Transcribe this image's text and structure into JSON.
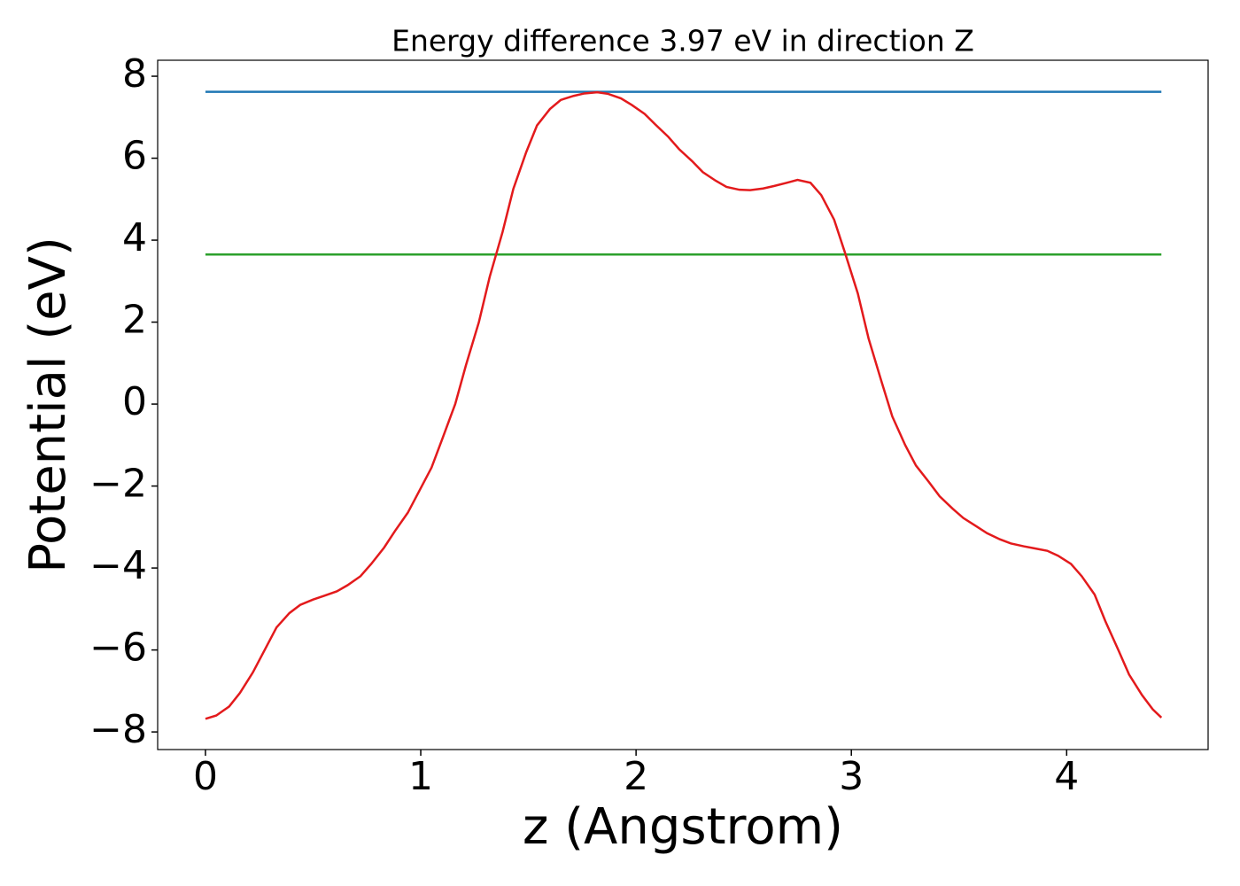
{
  "chart_data": {
    "type": "line",
    "title": "Energy difference 3.97 eV in direction Z",
    "xlabel": "z (Angstrom)",
    "ylabel": "Potential (eV)",
    "xlim": [
      -0.222,
      4.657
    ],
    "ylim": [
      -8.43,
      8.39
    ],
    "xticks": [
      0,
      1,
      2,
      3,
      4
    ],
    "yticks": [
      {
        "value": -8,
        "label": "−8"
      },
      {
        "value": -6,
        "label": "−6"
      },
      {
        "value": -4,
        "label": "−4"
      },
      {
        "value": -2,
        "label": "−2"
      },
      0,
      2,
      4,
      6,
      8
    ],
    "series": [
      {
        "color": "#1f77b4",
        "x": [
          0,
          4.44
        ],
        "values": [
          7.62,
          7.62
        ]
      },
      {
        "color": "#2ca02c",
        "x": [
          0,
          4.44
        ],
        "values": [
          3.65,
          3.65
        ]
      },
      {
        "color": "#e31a1c",
        "x": [
          0,
          0.05,
          0.11,
          0.16,
          0.22,
          0.28,
          0.33,
          0.39,
          0.44,
          0.5,
          0.55,
          0.61,
          0.66,
          0.72,
          0.77,
          0.83,
          0.88,
          0.94,
          0.99,
          1.05,
          1.1,
          1.16,
          1.21,
          1.27,
          1.32,
          1.38,
          1.43,
          1.49,
          1.54,
          1.6,
          1.65,
          1.71,
          1.76,
          1.82,
          1.87,
          1.93,
          1.98,
          2.04,
          2.09,
          2.15,
          2.2,
          2.26,
          2.31,
          2.37,
          2.42,
          2.48,
          2.53,
          2.59,
          2.64,
          2.7,
          2.75,
          2.81,
          2.86,
          2.92,
          2.97,
          3.03,
          3.08,
          3.14,
          3.19,
          3.25,
          3.3,
          3.36,
          3.41,
          3.47,
          3.52,
          3.58,
          3.63,
          3.69,
          3.74,
          3.8,
          3.85,
          3.91,
          3.96,
          4.02,
          4.07,
          4.13,
          4.18,
          4.24,
          4.29,
          4.35,
          4.4,
          4.44
        ],
        "values": [
          -7.68,
          -7.6,
          -7.38,
          -7.05,
          -6.55,
          -5.95,
          -5.45,
          -5.1,
          -4.9,
          -4.77,
          -4.68,
          -4.57,
          -4.42,
          -4.2,
          -3.9,
          -3.5,
          -3.1,
          -2.65,
          -2.15,
          -1.55,
          -0.85,
          0.0,
          0.95,
          2.0,
          3.1,
          4.2,
          5.25,
          6.15,
          6.8,
          7.2,
          7.42,
          7.52,
          7.58,
          7.61,
          7.57,
          7.46,
          7.3,
          7.08,
          6.82,
          6.52,
          6.22,
          5.93,
          5.66,
          5.45,
          5.3,
          5.23,
          5.22,
          5.26,
          5.32,
          5.4,
          5.47,
          5.4,
          5.1,
          4.5,
          3.7,
          2.7,
          1.6,
          0.55,
          -0.3,
          -1.0,
          -1.5,
          -1.9,
          -2.25,
          -2.55,
          -2.78,
          -2.98,
          -3.15,
          -3.3,
          -3.4,
          -3.47,
          -3.52,
          -3.58,
          -3.7,
          -3.9,
          -4.2,
          -4.65,
          -5.3,
          -6.0,
          -6.6,
          -7.1,
          -7.45,
          -7.65
        ]
      }
    ]
  }
}
